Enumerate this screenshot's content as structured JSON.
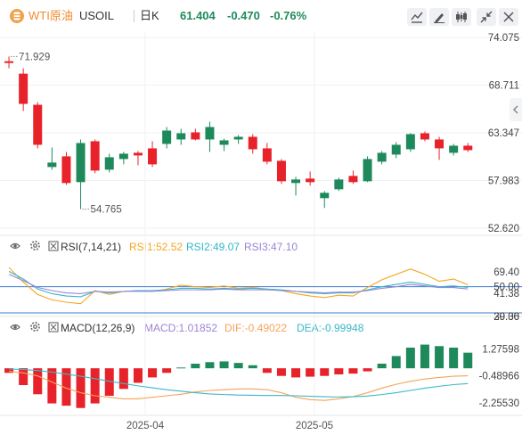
{
  "header": {
    "symbol_name": "WTI原油",
    "symbol_code": "USOIL",
    "period": "日K",
    "last_price": "61.404",
    "change": "-0.470",
    "change_pct": "-0.76%"
  },
  "toolbar": {
    "icons": [
      "chart-style-icon",
      "draw-icon",
      "indicator-icon",
      "collapse-icon",
      "close-icon"
    ]
  },
  "colors": {
    "up": "#1e8a5b",
    "down": "#e8222a",
    "rsi1": "#f5a623",
    "rsi2": "#34b7c9",
    "rsi3": "#9b84d6",
    "dif": "#f5a35a",
    "dea": "#3ab8c8",
    "hline": "#3a7bd5"
  },
  "rsi": {
    "title": "RSI(7,14,21)",
    "rsi1_label": "RSI1:52.52",
    "rsi2_label": "RSI2:49.07",
    "rsi3_label": "RSI3:47.10"
  },
  "macd": {
    "title": "MACD(12,26,9)",
    "macd_label": "MACD:1.01852",
    "dif_label": "DIF:-0.49022",
    "dea_label": "DEA:-0.99948"
  },
  "chart_data": [
    {
      "type": "candlestick",
      "title": "",
      "price_axis_ticks": [
        "74.075",
        "68.711",
        "63.347",
        "57.983",
        "52.620"
      ],
      "ylim": [
        52.62,
        74.075
      ],
      "annotations": [
        {
          "label": "71.929",
          "kind": "high"
        },
        {
          "label": "54.765",
          "kind": "low"
        }
      ],
      "x_tick_labels": [
        "2025-04",
        "2025-05"
      ],
      "x_tick_index": [
        9.5,
        21.3
      ],
      "candles": [
        {
          "o": 71.4,
          "h": 71.93,
          "l": 70.6,
          "c": 71.2
        },
        {
          "o": 70.0,
          "h": 70.6,
          "l": 65.8,
          "c": 66.6
        },
        {
          "o": 66.5,
          "h": 66.8,
          "l": 61.6,
          "c": 62.0
        },
        {
          "o": 59.5,
          "h": 61.7,
          "l": 59.2,
          "c": 60.0
        },
        {
          "o": 60.7,
          "h": 61.2,
          "l": 57.5,
          "c": 57.7
        },
        {
          "o": 57.8,
          "h": 62.6,
          "l": 54.765,
          "c": 62.2
        },
        {
          "o": 62.4,
          "h": 62.6,
          "l": 58.8,
          "c": 59.1
        },
        {
          "o": 59.2,
          "h": 61.0,
          "l": 58.9,
          "c": 60.6
        },
        {
          "o": 60.4,
          "h": 61.2,
          "l": 59.8,
          "c": 61.0
        },
        {
          "o": 61.1,
          "h": 61.3,
          "l": 59.7,
          "c": 60.8
        },
        {
          "o": 61.6,
          "h": 62.4,
          "l": 59.5,
          "c": 59.8
        },
        {
          "o": 62.1,
          "h": 64.0,
          "l": 61.6,
          "c": 63.6
        },
        {
          "o": 62.6,
          "h": 63.8,
          "l": 62.0,
          "c": 63.3
        },
        {
          "o": 63.4,
          "h": 63.8,
          "l": 62.5,
          "c": 62.6
        },
        {
          "o": 62.6,
          "h": 64.6,
          "l": 61.2,
          "c": 64.0
        },
        {
          "o": 62.0,
          "h": 62.7,
          "l": 61.3,
          "c": 62.5
        },
        {
          "o": 62.6,
          "h": 63.1,
          "l": 62.1,
          "c": 62.9
        },
        {
          "o": 62.9,
          "h": 63.2,
          "l": 61.0,
          "c": 61.5
        },
        {
          "o": 61.6,
          "h": 62.2,
          "l": 59.8,
          "c": 60.1
        },
        {
          "o": 60.2,
          "h": 60.4,
          "l": 57.6,
          "c": 57.9
        },
        {
          "o": 57.7,
          "h": 58.4,
          "l": 56.3,
          "c": 58.1
        },
        {
          "o": 58.2,
          "h": 59.0,
          "l": 57.4,
          "c": 57.8
        },
        {
          "o": 56.0,
          "h": 56.8,
          "l": 54.9,
          "c": 56.6
        },
        {
          "o": 57.0,
          "h": 58.3,
          "l": 56.8,
          "c": 58.1
        },
        {
          "o": 58.5,
          "h": 59.1,
          "l": 57.6,
          "c": 57.8
        },
        {
          "o": 57.9,
          "h": 60.7,
          "l": 57.8,
          "c": 60.4
        },
        {
          "o": 60.1,
          "h": 61.3,
          "l": 59.8,
          "c": 61.1
        },
        {
          "o": 60.9,
          "h": 62.3,
          "l": 60.5,
          "c": 62.0
        },
        {
          "o": 61.5,
          "h": 63.3,
          "l": 61.2,
          "c": 63.2
        },
        {
          "o": 63.3,
          "h": 63.5,
          "l": 62.4,
          "c": 62.6
        },
        {
          "o": 62.6,
          "h": 62.9,
          "l": 60.3,
          "c": 61.6
        },
        {
          "o": 61.1,
          "h": 62.1,
          "l": 60.8,
          "c": 61.9
        },
        {
          "o": 61.9,
          "h": 62.2,
          "l": 61.2,
          "c": 61.4
        }
      ]
    },
    {
      "type": "line",
      "title": "RSI(7,14,21)",
      "axis_ticks": [
        "69.40",
        "50.00",
        "41.38",
        "29.36",
        "30.00"
      ],
      "ylim": [
        15,
        90
      ],
      "reference_line": 50,
      "series": [
        {
          "name": "RSI1",
          "values": [
            75,
            56,
            40,
            33,
            30,
            28,
            45,
            40,
            44,
            45,
            44,
            47,
            52,
            50,
            49,
            51,
            48,
            49,
            47,
            45,
            41,
            38,
            36,
            39,
            38,
            49,
            59,
            66,
            73,
            66,
            57,
            60,
            52.52
          ]
        },
        {
          "name": "RSI2",
          "values": [
            70,
            60,
            47,
            41,
            38,
            37,
            44,
            42,
            44,
            45,
            45,
            46,
            48,
            48,
            47,
            48,
            47,
            48,
            47,
            46,
            44,
            42,
            41,
            42,
            42,
            46,
            50,
            53,
            56,
            53,
            50,
            51,
            49.07
          ]
        },
        {
          "name": "RSI3",
          "values": [
            66,
            58,
            49,
            45,
            42,
            41,
            44,
            43,
            44,
            44,
            44,
            45,
            46,
            46,
            46,
            47,
            46,
            46,
            46,
            45,
            44,
            43,
            42,
            43,
            43,
            45,
            48,
            50,
            53,
            51,
            49,
            49,
            47.1
          ]
        }
      ]
    },
    {
      "type": "bar",
      "title": "MACD(12,26,9)",
      "axis_ticks": [
        "1.27598",
        "-0.48966",
        "-2.25530"
      ],
      "ylim": [
        -2.85,
        2.05
      ],
      "histogram": [
        -0.3,
        -1.1,
        -1.7,
        -2.3,
        -2.45,
        -2.6,
        -2.3,
        -1.8,
        -1.35,
        -0.95,
        -0.6,
        -0.3,
        0.05,
        0.3,
        0.4,
        0.45,
        0.35,
        0.2,
        -0.3,
        -0.5,
        -0.6,
        -0.55,
        -0.5,
        -0.4,
        -0.35,
        -0.2,
        0.3,
        0.8,
        1.35,
        1.55,
        1.45,
        1.35,
        1.02
      ],
      "series": [
        {
          "name": "DIF",
          "values": [
            -0.2,
            -0.3,
            -0.5,
            -0.9,
            -1.3,
            -1.6,
            -1.8,
            -1.9,
            -2.0,
            -2.0,
            -1.9,
            -1.8,
            -1.7,
            -1.55,
            -1.45,
            -1.4,
            -1.35,
            -1.35,
            -1.4,
            -1.6,
            -1.9,
            -2.05,
            -2.1,
            -2.0,
            -1.85,
            -1.6,
            -1.3,
            -1.05,
            -0.85,
            -0.7,
            -0.6,
            -0.52,
            -0.49
          ]
        },
        {
          "name": "DEA",
          "values": [
            -0.05,
            -0.08,
            -0.15,
            -0.25,
            -0.38,
            -0.52,
            -0.68,
            -0.85,
            -1.0,
            -1.15,
            -1.28,
            -1.4,
            -1.5,
            -1.6,
            -1.68,
            -1.72,
            -1.75,
            -1.77,
            -1.78,
            -1.78,
            -1.8,
            -1.83,
            -1.86,
            -1.88,
            -1.86,
            -1.82,
            -1.72,
            -1.6,
            -1.45,
            -1.3,
            -1.18,
            -1.07,
            -1.0
          ]
        }
      ]
    }
  ]
}
